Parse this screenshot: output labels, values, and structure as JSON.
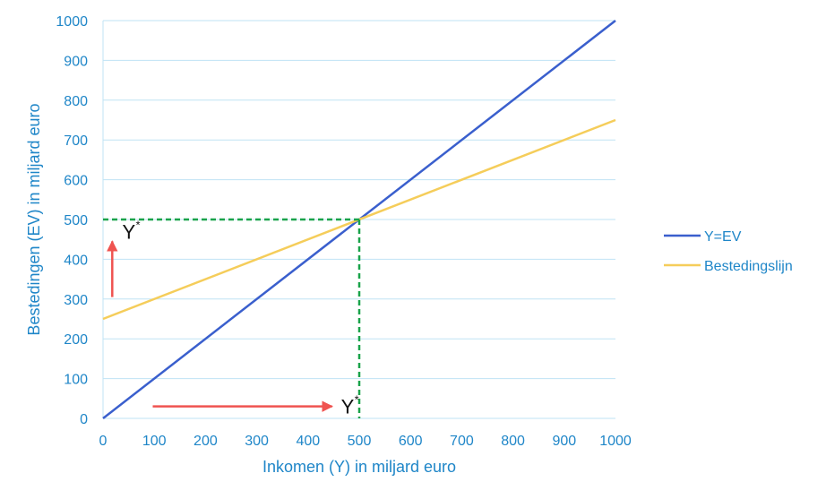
{
  "chart_data": {
    "type": "line",
    "title": "",
    "xlabel": "Inkomen (Y) in miljard euro",
    "ylabel": "Bestedingen (EV) in miljard euro",
    "xlim": [
      0,
      1000
    ],
    "ylim": [
      0,
      1000
    ],
    "x_ticks": [
      0,
      100,
      200,
      300,
      400,
      500,
      600,
      700,
      800,
      900,
      1000
    ],
    "y_ticks": [
      0,
      100,
      200,
      300,
      400,
      500,
      600,
      700,
      800,
      900,
      1000
    ],
    "grid": "horizontal",
    "legend_position": "right",
    "series": [
      {
        "name": "Y=EV",
        "color": "#3a5fcd",
        "x": [
          0,
          1000
        ],
        "y": [
          0,
          1000
        ]
      },
      {
        "name": "Bestedingslijn",
        "color": "#f5cd5a",
        "x": [
          0,
          1000
        ],
        "y": [
          250,
          750
        ]
      }
    ],
    "equilibrium": {
      "x": 500,
      "y": 500,
      "line_color": "#1aa34a",
      "label": "Y",
      "label_superscript": "*"
    },
    "arrows": [
      {
        "name": "vertical",
        "color": "#ef5350",
        "from": [
          18,
          305
        ],
        "to": [
          18,
          445
        ],
        "label": "Y",
        "label_superscript": "*",
        "label_at": [
          27,
          470
        ]
      },
      {
        "name": "horizontal",
        "color": "#ef5350",
        "from": [
          97,
          30
        ],
        "to": [
          447,
          30
        ],
        "label": "Y",
        "label_superscript": "*",
        "label_at": [
          447,
          30
        ]
      }
    ]
  }
}
